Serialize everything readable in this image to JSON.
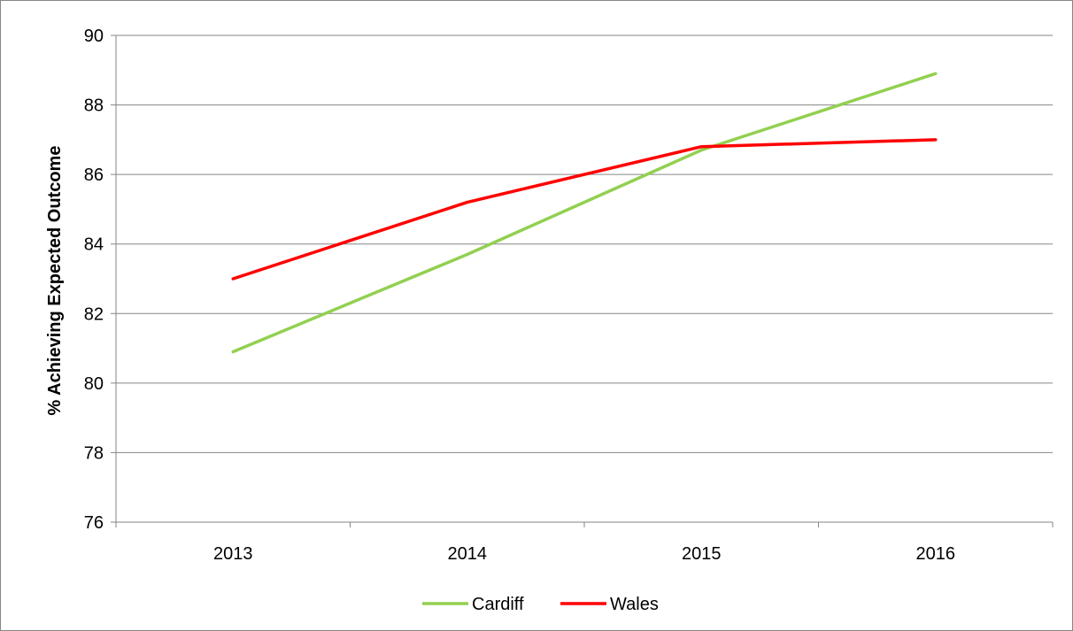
{
  "chart_data": {
    "type": "line",
    "title": "",
    "xlabel": "",
    "ylabel": "% Achieving Expected Outcome",
    "categories": [
      "2013",
      "2014",
      "2015",
      "2016"
    ],
    "ylim": [
      76,
      90
    ],
    "yticks": [
      76,
      78,
      80,
      82,
      84,
      86,
      88,
      90
    ],
    "grid": true,
    "legend_position": "bottom",
    "series": [
      {
        "name": "Cardiff",
        "color": "#92D050",
        "values": [
          80.9,
          83.7,
          86.7,
          88.9
        ]
      },
      {
        "name": "Wales",
        "color": "#FF0000",
        "values": [
          83.0,
          85.2,
          86.8,
          87.0
        ]
      }
    ]
  }
}
